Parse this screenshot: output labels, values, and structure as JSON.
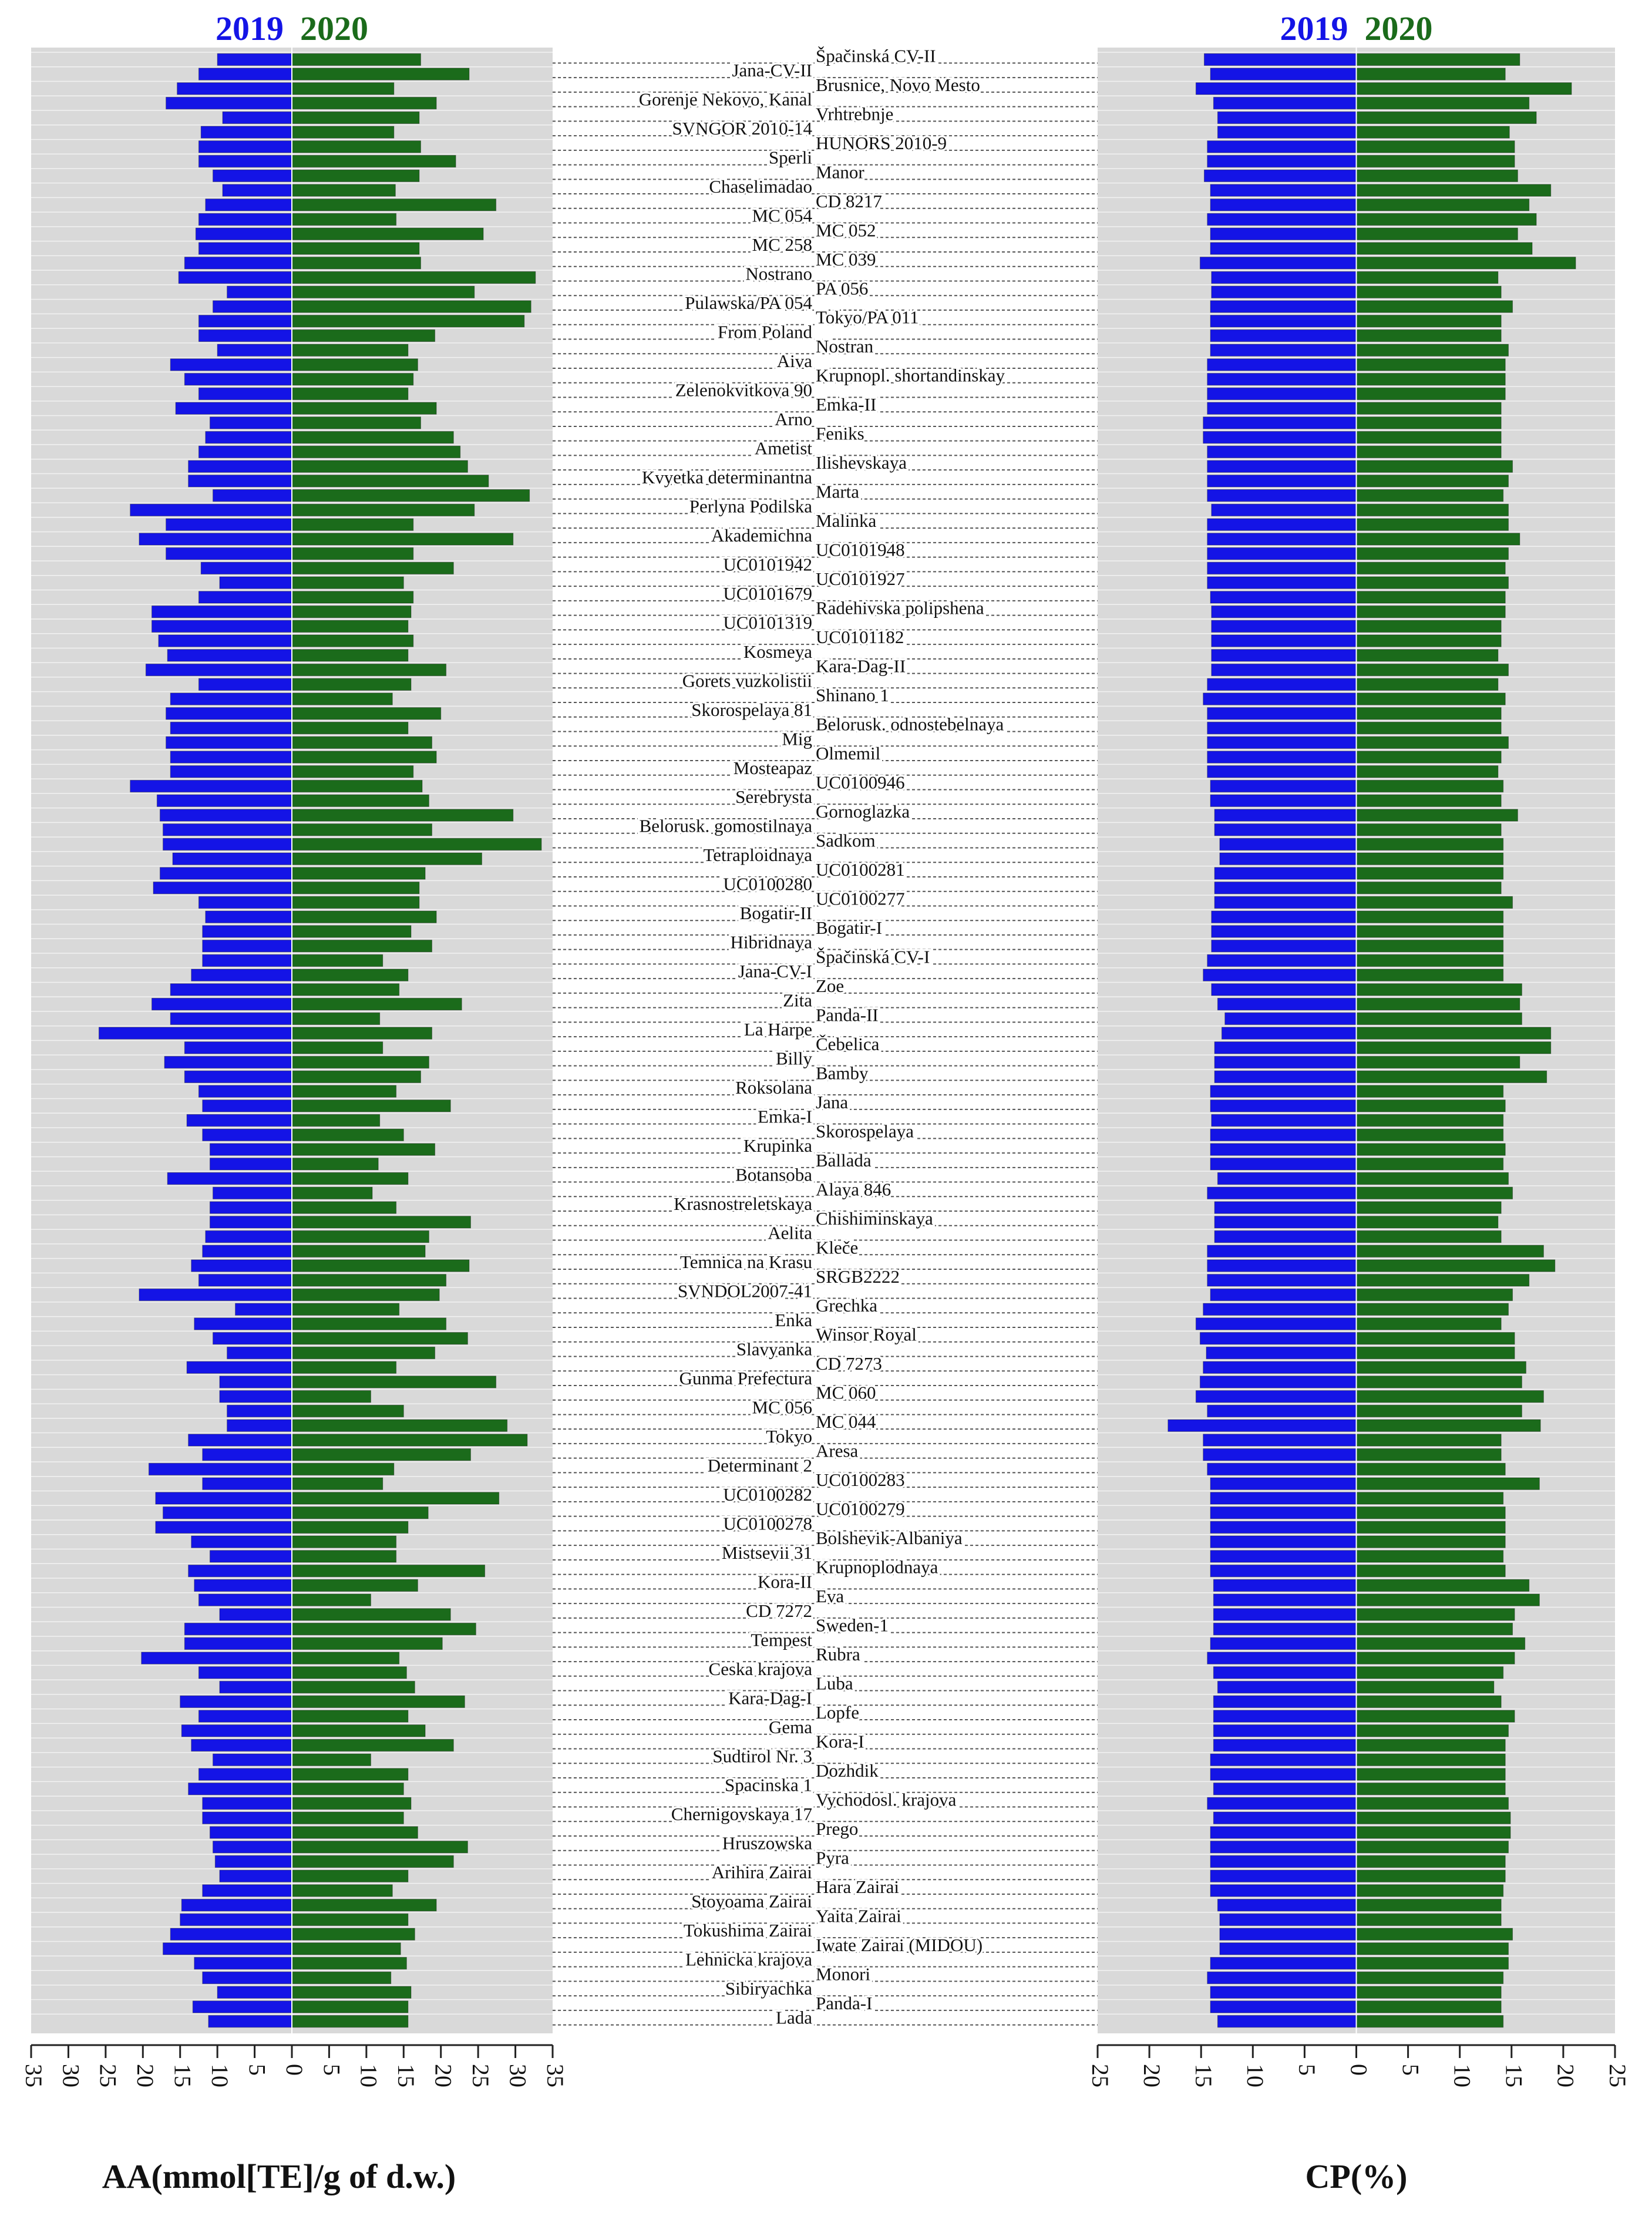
{
  "chart_data": {
    "type": "butterfly",
    "categories": [
      "Špačinská CV-II",
      "Jana-CV-II",
      "Brusnice, Novo Mesto",
      "Gorenje Nekovo, Kanal",
      "Vrhtrebnje",
      "SVNGOR 2010-14",
      "HUNORS 2010-9",
      "Sperli",
      "Manor",
      "Chaselimadao",
      "CD 8217",
      "MC 054",
      "MC 052",
      "MC 258",
      "MC 039",
      "Nostrano",
      "PA 056",
      "Pulawska/PA 054",
      "Tokyo/PA 011",
      "From Poland",
      "Nostran",
      "Aiva",
      "Krupnopl. shortandinskay",
      "Zelenokvitkova 90",
      "Emka-II",
      "Arno",
      "Feniks",
      "Ametist",
      "Ilishevskaya",
      "Kvyetka determinantna",
      "Marta",
      "Perlyna Podilska",
      "Malinka",
      "Akademichna",
      "UC0101948",
      "UC0101942",
      "UC0101927",
      "UC0101679",
      "Radehivska polipshena",
      "UC0101319",
      "UC0101182",
      "Kosmeya",
      "Kara-Dag-II",
      "Gorets vuzkolistii",
      "Shinano 1",
      "Skorospelaya 81",
      "Belorusk. odnostebelnaya",
      "Mig",
      "Olmemil",
      "Mosteapaz",
      "UC0100946",
      "Serebrysta",
      "Gornoglazka",
      "Belorusk. gomostilnaya",
      "Sadkom",
      "Tetraploidnaya",
      "UC0100281",
      "UC0100280",
      "UC0100277",
      "Bogatir-II",
      "Bogatir-I",
      "Hibridnaya",
      "Špačinská CV-I",
      "Jana-CV-I",
      "Zoe",
      "Zita",
      "Panda-II",
      "La Harpe",
      "Čebelica",
      "Billy",
      "Bamby",
      "Roksolana",
      "Jana",
      "Emka-I",
      "Skorospelaya",
      "Krupinka",
      "Ballada",
      "Botansoba",
      "Alaya 846",
      "Krasnostreletskaya",
      "Chishiminskaya",
      "Aelita",
      "Kleče",
      "Temnica na Krasu",
      "SRGB2222",
      "SVNDOL2007-41",
      "Grechka",
      "Enka",
      "Winsor Royal",
      "Slavyanka",
      "CD 7273",
      "Gunma Prefectura",
      "MC 060",
      "MC 056",
      "MC 044",
      "Tokyo",
      "Aresa",
      "Determinant 2",
      "UC0100283",
      "UC0100282",
      "UC0100279",
      "UC0100278",
      "Bolshevik-Albaniya",
      "Mistsevii 31",
      "Krupnoplodnaya",
      "Kora-II",
      "Eva",
      "CD 7272",
      "Sweden-1",
      "Tempest",
      "Rubra",
      "Ceska krajova",
      "Luba",
      "Kara-Dag-I",
      "Lopfe",
      "Gema",
      "Kora-I",
      "Sudtirol Nr. 3",
      "Dozhdik",
      "Spacinska 1",
      "Vychodosl. krajova",
      "Chernigovskaya 17",
      "Prego",
      "Hruszowska",
      "Pyra",
      "Arihira Zairai",
      "Hara Zairai",
      "Stoyoama Zairai",
      "Yaita Zairai",
      "Tokushima Zairai",
      "Iwate Zairai (MIDOU)",
      "Lehnicka krajova",
      "Monori",
      "Sibiryachka",
      "Panda-I",
      "Lada"
    ],
    "panels": [
      {
        "xlabel": "AA(mmol[TE]/g of d.w.)",
        "xlim": [
          -35,
          35
        ],
        "xticks": [
          {
            "value": -35,
            "label": "35"
          },
          {
            "value": -30,
            "label": "30"
          },
          {
            "value": -25,
            "label": "25"
          },
          {
            "value": -20,
            "label": "20"
          },
          {
            "value": -15,
            "label": "15"
          },
          {
            "value": -10,
            "label": "10"
          },
          {
            "value": -5,
            "label": "5"
          },
          0,
          5,
          10,
          15,
          20,
          25,
          30,
          35
        ],
        "series": [
          {
            "name": "2019",
            "color": "#1414e6",
            "values": [
              10,
              12.5,
              15.4,
              16.9,
              9.3,
              12.2,
              12.5,
              12.5,
              10.6,
              9.3,
              11.6,
              12.5,
              12.9,
              12.5,
              14.4,
              15.2,
              8.7,
              10.6,
              12.5,
              12.5,
              10,
              16.3,
              14.4,
              12.5,
              15.6,
              11,
              11.6,
              12.5,
              13.9,
              13.9,
              10.6,
              21.7,
              16.9,
              20.5,
              16.9,
              12.2,
              9.7,
              12.5,
              18.8,
              18.8,
              17.9,
              16.7,
              19.6,
              12.5,
              16.3,
              16.9,
              16.3,
              16.9,
              16.3,
              16.3,
              21.7,
              18.1,
              17.7,
              17.3,
              17.3,
              16,
              17.7,
              18.6,
              12.5,
              11.6,
              12,
              12,
              12,
              13.5,
              16.3,
              18.8,
              16.3,
              25.9,
              14.4,
              17.1,
              14.4,
              12.5,
              12,
              14.1,
              12,
              11,
              11,
              16.7,
              10.6,
              11,
              11,
              11.6,
              12,
              13.5,
              12.5,
              20.5,
              7.6,
              13.1,
              10.6,
              8.7,
              14.1,
              9.7,
              9.7,
              8.7,
              8.7,
              13.9,
              12,
              19.2,
              12,
              18.3,
              17.3,
              18.3,
              13.5,
              11,
              13.9,
              13.1,
              12.5,
              9.7,
              14.4,
              14.4,
              20.2,
              12.5,
              9.7,
              15,
              12.5,
              14.8,
              13.5,
              10.6,
              12.5,
              13.9,
              12,
              12,
              11,
              10.6,
              10.3,
              9.7,
              12,
              14.8,
              15,
              16.3,
              17.3,
              13.1,
              12,
              10,
              13.3,
              11.2
            ]
          },
          {
            "name": "2020",
            "color": "#1b6b1b",
            "values": [
              17.3,
              23.8,
              13.7,
              19.4,
              17.1,
              13.7,
              17.3,
              22,
              17.1,
              13.9,
              27.4,
              14,
              25.7,
              17.1,
              17.3,
              32.7,
              24.5,
              32.1,
              31.2,
              19.2,
              15.6,
              16.9,
              16.3,
              15.6,
              19.4,
              17.3,
              21.7,
              22.6,
              23.6,
              26.4,
              31.9,
              24.5,
              16.3,
              29.7,
              16.3,
              21.7,
              15,
              16.3,
              16,
              15.6,
              16.3,
              15.6,
              20.7,
              16,
              13.5,
              20,
              15.6,
              18.8,
              19.4,
              16.3,
              17.5,
              18.4,
              29.7,
              18.8,
              33.5,
              25.5,
              17.9,
              17.1,
              17.1,
              19.4,
              16,
              18.8,
              12.2,
              15.6,
              14.4,
              22.8,
              11.8,
              18.8,
              12.2,
              18.4,
              17.3,
              14,
              21.3,
              11.8,
              15,
              19.2,
              11.6,
              15.6,
              10.8,
              14,
              24,
              18.4,
              17.9,
              23.8,
              20.7,
              19.8,
              14.4,
              20.7,
              23.6,
              19.2,
              14,
              27.4,
              10.6,
              15,
              28.9,
              31.6,
              24,
              13.7,
              12.2,
              27.8,
              18.3,
              15.6,
              14,
              14,
              25.9,
              16.9,
              10.6,
              21.3,
              24.7,
              20.2,
              14.4,
              15.4,
              16.5,
              23.2,
              15.6,
              17.9,
              21.7,
              10.6,
              15.6,
              15,
              16,
              15,
              16.9,
              23.6,
              21.7,
              15.6,
              13.5,
              19.4,
              15.6,
              16.5,
              14.6,
              15.4,
              13.3,
              16,
              15.6,
              15.6
            ]
          }
        ]
      },
      {
        "xlabel": "CP(%)",
        "xlim": [
          -25,
          25
        ],
        "xticks": [
          {
            "value": -25,
            "label": "25"
          },
          {
            "value": -20,
            "label": "20"
          },
          {
            "value": -15,
            "label": "15"
          },
          {
            "value": -10,
            "label": "10"
          },
          {
            "value": -5,
            "label": "5"
          },
          0,
          5,
          10,
          15,
          20,
          25
        ],
        "series": [
          {
            "name": "2019",
            "color": "#1414e6",
            "values": [
              14.7,
              14.1,
              15.5,
              13.8,
              13.4,
              13.4,
              14.4,
              14.4,
              14.7,
              14.1,
              14.1,
              14.4,
              14.1,
              14.1,
              15.1,
              14,
              14,
              14.1,
              14.1,
              14.1,
              14.1,
              14.4,
              14.4,
              14.4,
              14.4,
              14.8,
              14.8,
              14.4,
              14.4,
              14.4,
              14.4,
              14,
              14.4,
              14.4,
              14.4,
              14.4,
              14.4,
              14.1,
              14,
              14,
              14,
              14,
              14,
              14.4,
              14.8,
              14.4,
              14.4,
              14.4,
              14.4,
              14.4,
              14.1,
              14.1,
              13.7,
              13.7,
              13.2,
              13.2,
              13.7,
              13.7,
              13.7,
              14,
              14,
              14,
              14.4,
              14.8,
              14,
              13.4,
              12.7,
              13,
              13.7,
              13.7,
              13.7,
              14.1,
              14.1,
              14,
              14.1,
              14.1,
              14.1,
              13.4,
              14.4,
              13.7,
              13.7,
              13.7,
              14.4,
              14.4,
              14.4,
              14.1,
              14.8,
              15.5,
              15.1,
              14.5,
              14.8,
              15.1,
              15.5,
              14.4,
              18.2,
              14.8,
              14.8,
              14.4,
              14.1,
              14.1,
              14.1,
              14.1,
              14.1,
              14.1,
              14.1,
              13.8,
              13.8,
              13.8,
              13.8,
              14.1,
              14.4,
              13.8,
              13.4,
              13.8,
              13.8,
              13.8,
              13.8,
              14.1,
              14.1,
              13.8,
              14.4,
              13.8,
              14.1,
              14.1,
              14.1,
              14.1,
              14.1,
              13.4,
              13.2,
              13.2,
              13.2,
              14.1,
              14.4,
              14.1,
              14.1,
              13.4
            ]
          },
          {
            "name": "2020",
            "color": "#1b6b1b",
            "values": [
              15.8,
              14.4,
              20.8,
              16.7,
              17.4,
              14.8,
              15.3,
              15.3,
              15.6,
              18.8,
              16.7,
              17.4,
              15.6,
              17,
              21.2,
              13.7,
              14,
              15.1,
              14,
              14,
              14.7,
              14.4,
              14.4,
              14.4,
              14,
              14,
              14,
              14,
              15.1,
              14.7,
              14.2,
              14.7,
              14.7,
              15.8,
              14.7,
              14.4,
              14.7,
              14.4,
              14.4,
              14,
              14,
              13.7,
              14.7,
              13.7,
              14.4,
              14,
              14,
              14.7,
              14,
              13.7,
              14.2,
              14,
              15.6,
              14,
              14.2,
              14.2,
              14.2,
              14,
              15.1,
              14.2,
              14.2,
              14.2,
              14.2,
              14.2,
              16,
              15.8,
              16,
              18.8,
              18.8,
              15.8,
              18.4,
              14.2,
              14.4,
              14.2,
              14.2,
              14.4,
              14.2,
              14.7,
              15.1,
              14,
              13.7,
              14,
              18.1,
              19.2,
              16.7,
              15.1,
              14.7,
              14,
              15.3,
              15.3,
              16.4,
              16,
              18.1,
              16,
              17.8,
              14,
              14,
              14.4,
              17.7,
              14.2,
              14.4,
              14.4,
              14.4,
              14.2,
              14.4,
              16.7,
              17.7,
              15.3,
              15.1,
              16.3,
              15.3,
              14.2,
              13.3,
              14,
              15.3,
              14.7,
              14.4,
              14.4,
              14.4,
              14.4,
              14.7,
              14.9,
              14.9,
              14.7,
              14.4,
              14.4,
              14.2,
              14,
              14,
              15.1,
              14.7,
              14.7,
              14.2,
              14,
              14,
              14.2
            ]
          }
        ]
      }
    ]
  }
}
